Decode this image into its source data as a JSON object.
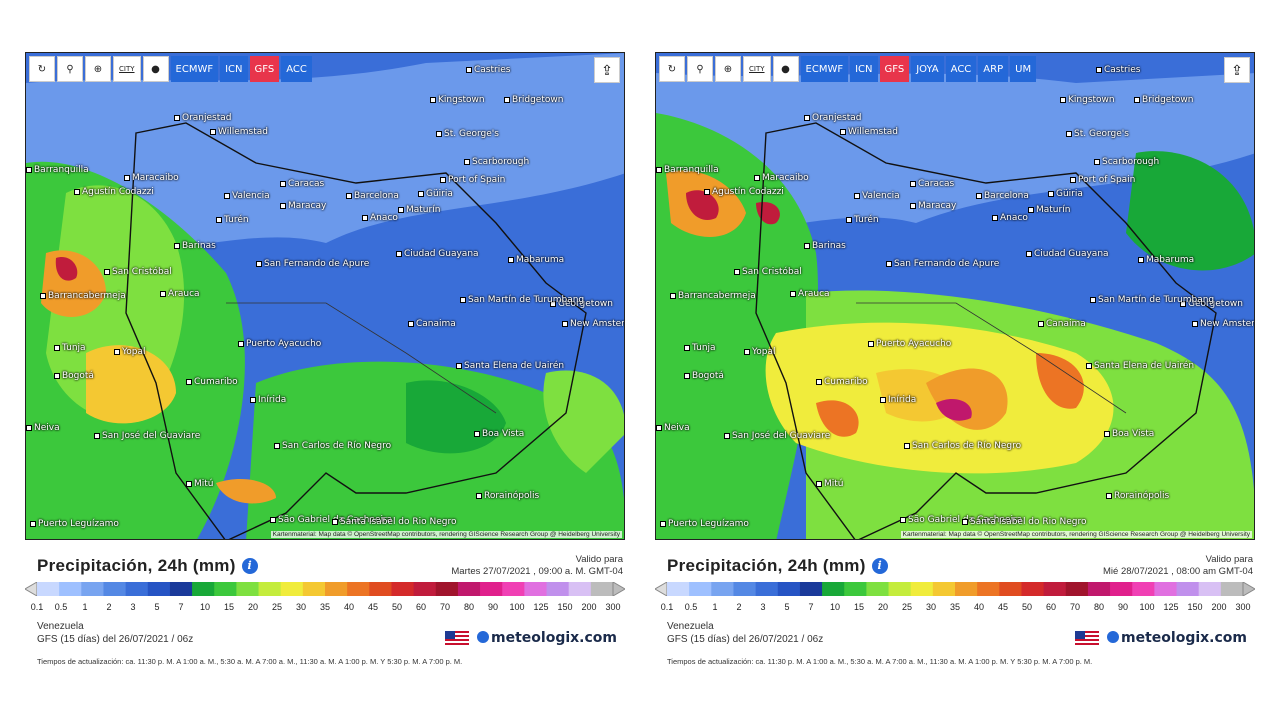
{
  "toolbar_icons": [
    "refresh-icon",
    "location-pin-icon",
    "zoom-icon",
    "city-icon",
    "dot-marker-icon"
  ],
  "city_label": "CITY",
  "legend": {
    "colors": [
      "#c8d8ff",
      "#9ec0ff",
      "#78a4f0",
      "#5488e4",
      "#3a6ed8",
      "#2654c4",
      "#1a3a9a",
      "#18a838",
      "#3cc83c",
      "#7ee040",
      "#c4ec3c",
      "#f0ec3c",
      "#f4c832",
      "#f09c2a",
      "#ec7424",
      "#e04c20",
      "#d42a2a",
      "#c01c3c",
      "#a0142c",
      "#c0186c",
      "#e0208c",
      "#f040b4",
      "#e070e0",
      "#c090ec",
      "#d8c0f4",
      "#bcbcbc"
    ],
    "labels": [
      "0.1",
      "0.5",
      "1",
      "2",
      "3",
      "5",
      "7",
      "10",
      "15",
      "20",
      "25",
      "30",
      "35",
      "40",
      "45",
      "50",
      "60",
      "70",
      "80",
      "90",
      "100",
      "125",
      "150",
      "200",
      "300"
    ]
  },
  "cities": [
    {
      "name": "Castries",
      "x": [
        440,
        440
      ]
    },
    {
      "name": "Kingstown",
      "x": 0
    },
    {
      "name": "Bridgetown",
      "x": 0
    },
    {
      "name": "Oranjestad",
      "x": 0
    },
    {
      "name": "Willemstad",
      "x": 0
    },
    {
      "name": "St. George's",
      "x": 0
    },
    {
      "name": "Scarborough",
      "x": 0
    },
    {
      "name": "Barranquilla",
      "x": 0
    },
    {
      "name": "Maracaibo",
      "x": 0
    },
    {
      "name": "Port of Spain",
      "x": 0
    },
    {
      "name": "Caracas",
      "x": 0
    },
    {
      "name": "Valencia",
      "x": 0
    },
    {
      "name": "Barcelona",
      "x": 0
    },
    {
      "name": "Güiria",
      "x": 0
    },
    {
      "name": "Maracay",
      "x": 0
    },
    {
      "name": "Agustín Codazzi",
      "x": 0
    },
    {
      "name": "Maturín",
      "x": 0
    },
    {
      "name": "Anaco",
      "x": 0
    },
    {
      "name": "Turén",
      "x": 0
    },
    {
      "name": "Barinas",
      "x": 0
    },
    {
      "name": "Ciudad Guayana",
      "x": 0
    },
    {
      "name": "Mabaruma",
      "x": 0
    },
    {
      "name": "San Cristóbal",
      "x": 0
    },
    {
      "name": "San Fernando de Apure",
      "x": 0
    },
    {
      "name": "Arauca",
      "x": 0
    },
    {
      "name": "Barrancabermeja",
      "x": 0
    },
    {
      "name": "Georgetown",
      "x": 0
    },
    {
      "name": "San Martín de Turumbang",
      "x": 0
    },
    {
      "name": "New Amsterdam",
      "x": 0
    },
    {
      "name": "Canaima",
      "x": 0
    },
    {
      "name": "Tunja",
      "x": 0
    },
    {
      "name": "Yopal",
      "x": 0
    },
    {
      "name": "Puerto Ayacucho",
      "x": 0
    },
    {
      "name": "Bogotá",
      "x": 0
    },
    {
      "name": "Santa Elena de Uairén",
      "x": 0
    },
    {
      "name": "Cumaribo",
      "x": 0
    },
    {
      "name": "Inírida",
      "x": 0
    },
    {
      "name": "San José del Guaviare",
      "x": 0
    },
    {
      "name": "Boa Vista",
      "x": 0
    },
    {
      "name": "San Carlos de Río Negro",
      "x": 0
    },
    {
      "name": "Mitú",
      "x": 0
    },
    {
      "name": "Rorainópolis",
      "x": 0
    },
    {
      "name": "São Gabriel da Cachoeira",
      "x": 0
    },
    {
      "name": "Santa Isabel do Rio Negro",
      "x": 0
    },
    {
      "name": "Puerto Leguízamo",
      "x": 0
    },
    {
      "name": "Neiva",
      "x": 0
    }
  ],
  "credit": "Kartenmaterial: Map data © OpenStreetMap contributors, rendering GIScience Research Group @ Heidelberg University",
  "title": "Precipitación, 24h (mm)",
  "valid_label": "Valido para",
  "region": "Venezuela",
  "run": "GFS  (15 días)  del 26/07/2021 / 06z",
  "brand": "meteologix.com",
  "updates": "Tiempos de actualización: ca. 11:30 p. M. A 1:00 a. M., 5:30 a. M. A 7:00 a. M., 11:30 a. M. A 1:00 p. M. Y 5:30 p. M. A 7:00 p. M.",
  "left": {
    "models": [
      "ECMWF",
      "ICN",
      "GFS",
      "ACC"
    ],
    "active_model": "GFS",
    "valid_date": "Martes 27/07/2021 , 09:00 a. M. GMT-04"
  },
  "right": {
    "models": [
      "ECMWF",
      "ICN",
      "GFS",
      "JOYA",
      "ACC",
      "ARP",
      "UM"
    ],
    "active_model": "GFS",
    "valid_date": "Mié 28/07/2021 , 08:00 am GMT-04"
  }
}
